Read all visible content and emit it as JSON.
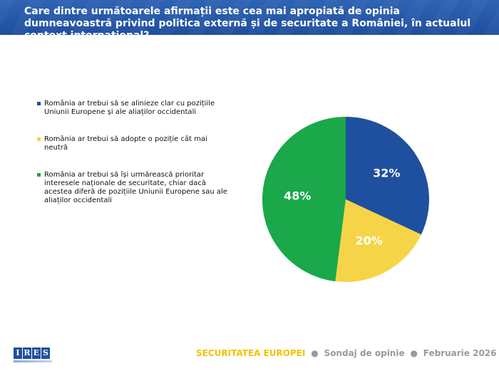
{
  "header": {
    "title": "Care dintre următoarele afirmații este cea mai apropiată de opinia dumneavoastră privind politica externă și de securitate a României, în actualul context internațional?"
  },
  "chart_data": {
    "type": "pie",
    "categories": [
      "România ar trebui să se alinieze clar cu pozițiile Uniunii Europene și ale aliaților occidentali",
      "România ar trebui să adopte o poziție cât mai neutră",
      "România ar trebui să își urmărească prioritar interesele naționale de securitate, chiar dacă acestea diferă de pozițiile Uniunii Europene sau ale aliaților occidentali"
    ],
    "values": [
      32,
      20,
      48
    ],
    "value_labels": [
      "32%",
      "20%",
      "48%"
    ],
    "colors": [
      "#1f4f9f",
      "#f5d547",
      "#1aa84a"
    ],
    "label_colors": [
      "#ffffff",
      "#ffffff",
      "#ffffff"
    ],
    "legend_position": "left"
  },
  "footer": {
    "logo_letters": [
      "I",
      "R",
      "E",
      "S"
    ],
    "brand": "SECURITATEA EUROPEI",
    "separator": "●",
    "part2": "Sondaj de opinie",
    "part3": "Februarie 2026"
  }
}
